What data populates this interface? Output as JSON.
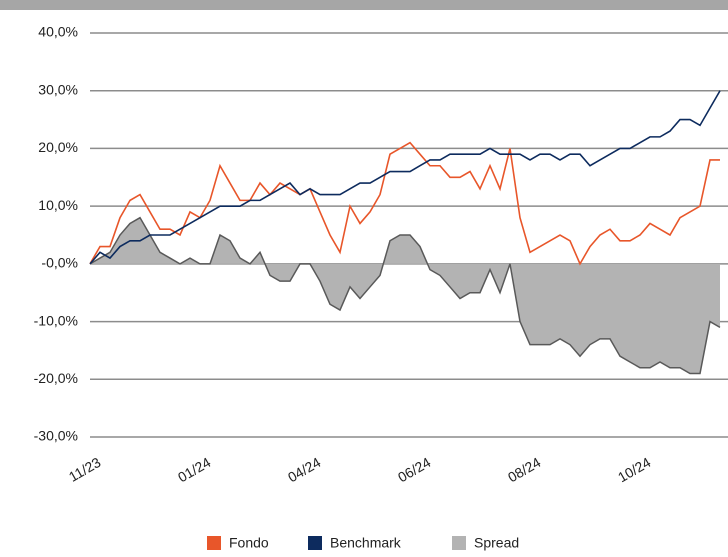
{
  "chart_data": {
    "type": "line",
    "categories": [
      "11/23",
      null,
      null,
      null,
      null,
      null,
      null,
      null,
      null,
      null,
      null,
      "01/24",
      null,
      null,
      null,
      null,
      null,
      null,
      null,
      null,
      null,
      null,
      "04/24",
      null,
      null,
      null,
      null,
      null,
      null,
      null,
      null,
      null,
      null,
      "06/24",
      null,
      null,
      null,
      null,
      null,
      null,
      null,
      null,
      null,
      null,
      "08/24",
      null,
      null,
      null,
      null,
      null,
      null,
      null,
      null,
      null,
      null,
      "10/24",
      null,
      null,
      null,
      null,
      null,
      null,
      null,
      null
    ],
    "series": [
      {
        "name": "Fondo",
        "color": "#e8562a",
        "values": [
          0,
          3,
          3,
          8,
          11,
          12,
          9,
          6,
          6,
          5,
          9,
          8,
          11,
          17,
          14,
          11,
          11,
          14,
          12,
          14,
          13,
          12,
          13,
          9,
          5,
          2,
          10,
          7,
          9,
          12,
          19,
          20,
          21,
          19,
          17,
          17,
          15,
          15,
          16,
          13,
          17,
          13,
          20,
          8,
          2,
          3,
          4,
          5,
          4,
          0,
          3,
          5,
          6,
          4,
          4,
          5,
          7,
          6,
          5,
          8,
          9,
          10,
          18,
          18
        ]
      },
      {
        "name": "Benchmark",
        "color": "#0d2b5e",
        "values": [
          0,
          2,
          1,
          3,
          4,
          4,
          5,
          5,
          5,
          6,
          7,
          8,
          9,
          10,
          10,
          10,
          11,
          11,
          12,
          13,
          14,
          12,
          13,
          12,
          12,
          12,
          13,
          14,
          14,
          15,
          16,
          16,
          16,
          17,
          18,
          18,
          19,
          19,
          19,
          19,
          20,
          19,
          19,
          19,
          18,
          19,
          19,
          18,
          19,
          19,
          17,
          18,
          19,
          20,
          20,
          21,
          22,
          22,
          23,
          25,
          25,
          24,
          27,
          30
        ]
      },
      {
        "name": "Spread",
        "color": "#b3b3b3",
        "area": true,
        "values": [
          0,
          1,
          2,
          5,
          7,
          8,
          5,
          2,
          1,
          0,
          1,
          0,
          0,
          5,
          4,
          1,
          0,
          2,
          -2,
          -3,
          -3,
          0,
          0,
          -3,
          -7,
          -8,
          -4,
          -6,
          -4,
          -2,
          4,
          5,
          5,
          3,
          -1,
          -2,
          -4,
          -6,
          -5,
          -5,
          -1,
          -5,
          0,
          -10,
          -14,
          -14,
          -14,
          -13,
          -14,
          -16,
          -14,
          -13,
          -13,
          -16,
          -17,
          -18,
          -18,
          -17,
          -18,
          -18,
          -19,
          -19,
          -10,
          -11
        ]
      }
    ],
    "ylim": [
      -30,
      40
    ],
    "yticks": [
      {
        "value": -30,
        "label": "-30,0%"
      },
      {
        "value": -20,
        "label": "-20,0%"
      },
      {
        "value": -10,
        "label": "-10,0%"
      },
      {
        "value": 0,
        "label": "-0,0%"
      },
      {
        "value": 10,
        "label": "10,0%"
      },
      {
        "value": 20,
        "label": "20,0%"
      },
      {
        "value": 30,
        "label": "30,0%"
      },
      {
        "value": 40,
        "label": "40,0%"
      }
    ],
    "grid": true
  }
}
